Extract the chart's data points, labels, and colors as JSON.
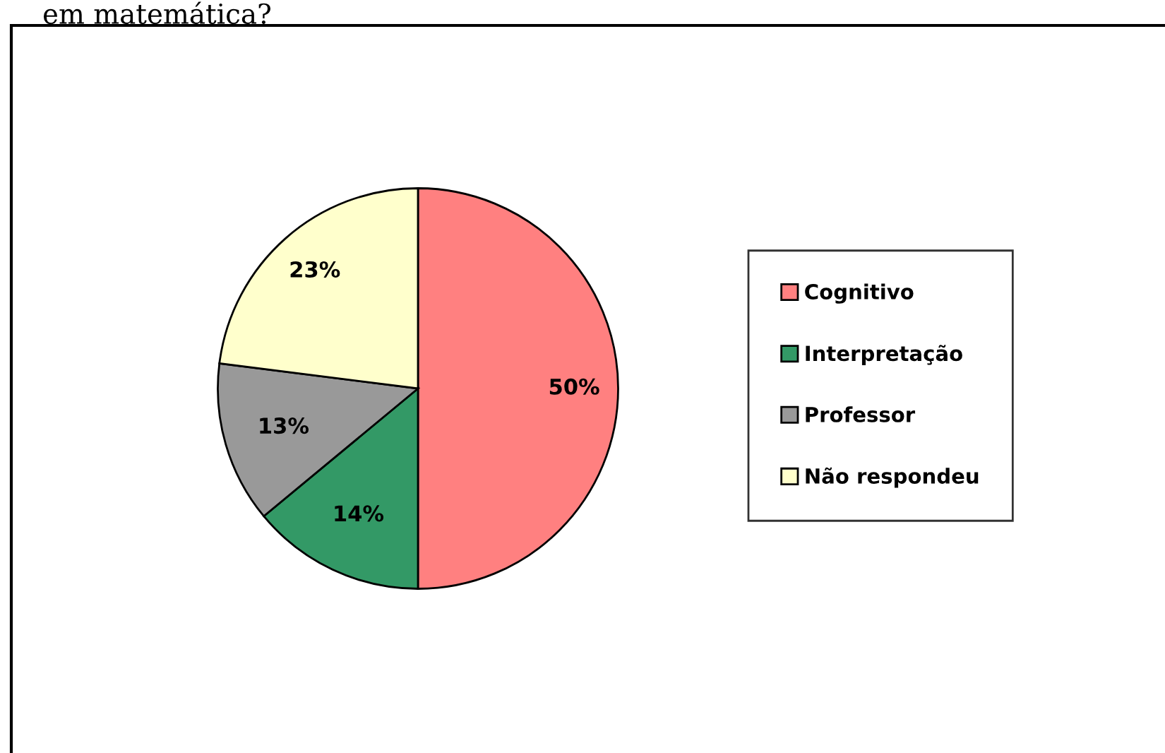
{
  "chart_data": {
    "type": "pie",
    "title": "em matemática?",
    "categories": [
      "Cognitivo",
      "Interpretação",
      "Professor",
      "Não respondeu"
    ],
    "values": [
      50,
      14,
      13,
      23
    ],
    "colors": [
      "#ff8080",
      "#339966",
      "#999999",
      "#ffffcc"
    ],
    "value_labels": [
      "50%",
      "14%",
      "13%",
      "23%"
    ],
    "legend": "right"
  }
}
